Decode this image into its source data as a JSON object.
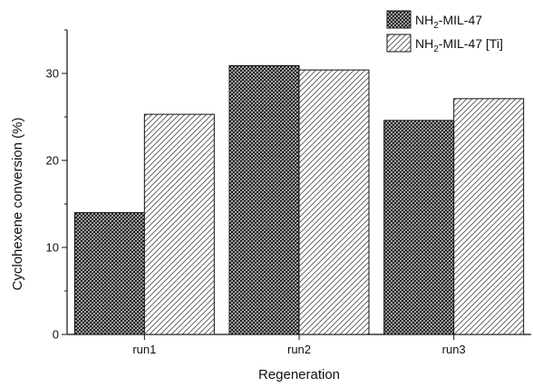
{
  "chart_data": {
    "type": "bar",
    "title": "",
    "xlabel": "Regeneration",
    "ylabel": "Cyclohexene conversion (%)",
    "categories": [
      "run1",
      "run2",
      "run3"
    ],
    "ylim": [
      0,
      35
    ],
    "yticks": [
      0,
      10,
      20,
      30
    ],
    "grid": false,
    "legend_position": "top-right",
    "series": [
      {
        "name_main": "NH",
        "name_sub": "2",
        "name_tail": "-MIL-47",
        "pattern": "crosshatch",
        "color": "#1a1a1a",
        "values": [
          14.0,
          30.9,
          24.6
        ]
      },
      {
        "name_main": "NH",
        "name_sub": "2",
        "name_tail": "-MIL-47 [Ti]",
        "pattern": "diagonal",
        "color": "#555555",
        "values": [
          25.3,
          30.4,
          27.1
        ]
      }
    ]
  }
}
